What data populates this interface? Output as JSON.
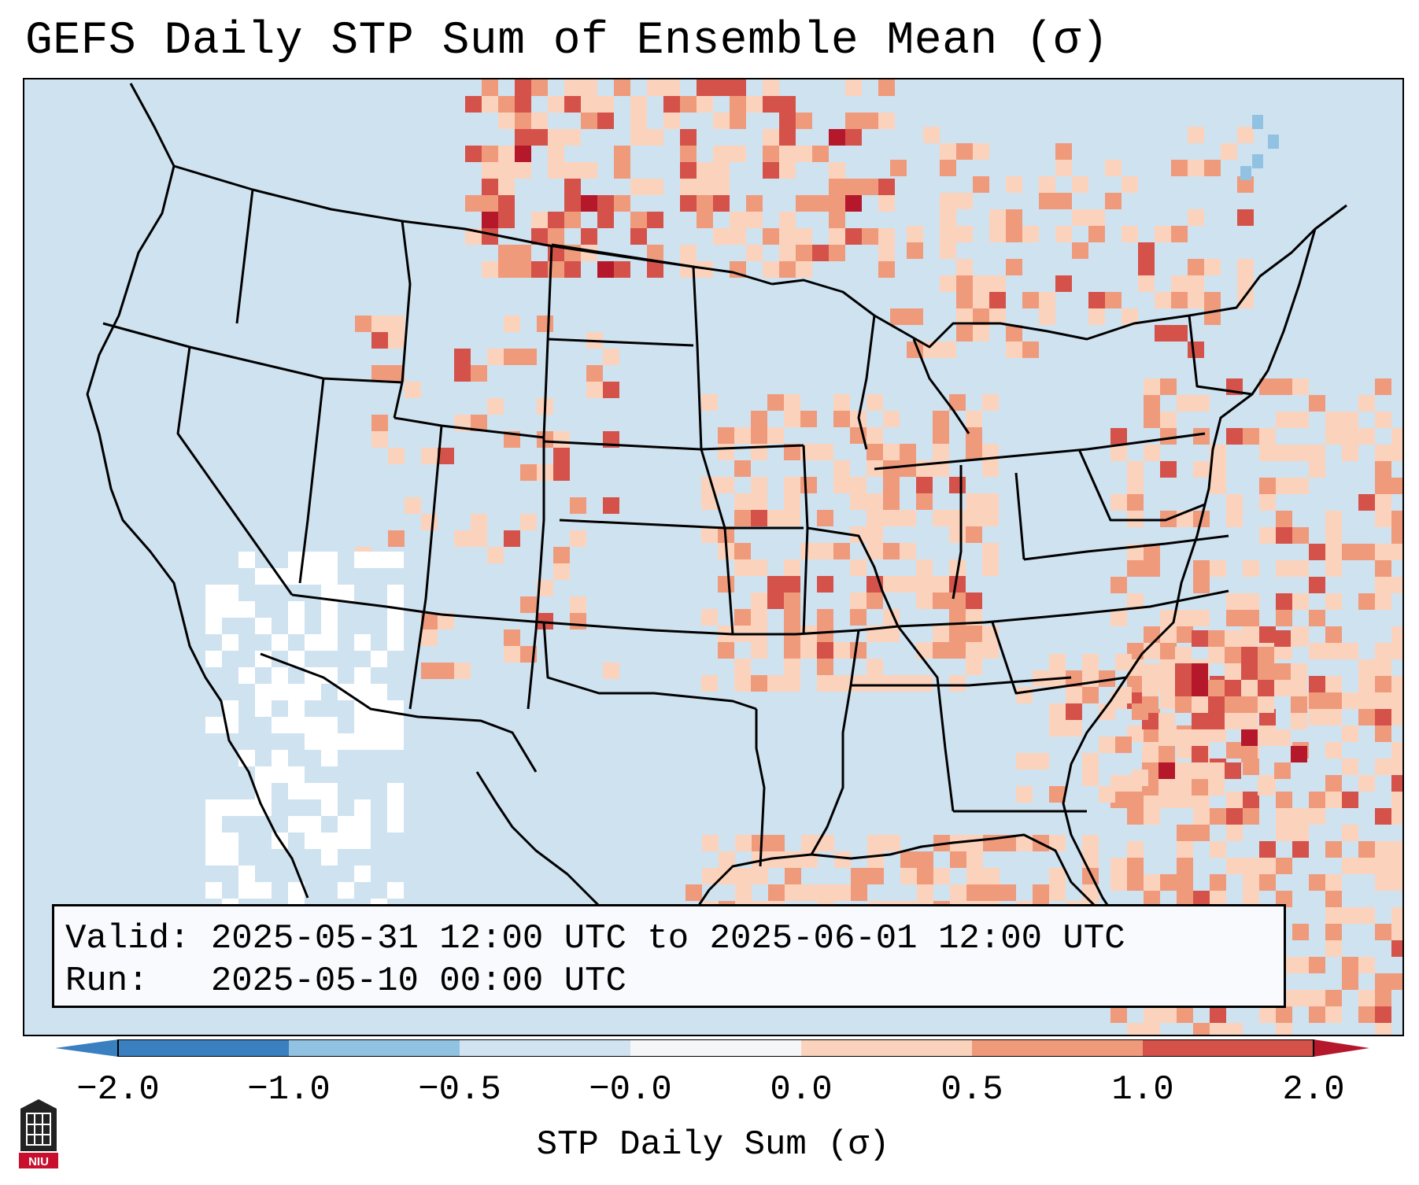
{
  "title": "GEFS Daily STP Sum of Ensemble Mean (σ)",
  "info": {
    "valid": "Valid: 2025-05-31 12:00 UTC to 2025-06-01 12:00 UTC",
    "run": "Run:   2025-05-10 00:00 UTC"
  },
  "colorbar": {
    "label": "STP Daily Sum (σ)",
    "ticks": [
      "−2.0",
      "−1.0",
      "−0.5",
      "−0.0",
      "0.0",
      "0.5",
      "1.0",
      "2.0"
    ],
    "colors": [
      "#3a7fbf",
      "#92c2e1",
      "#d1e3f1",
      "#f4f6f8",
      "#fbd3bd",
      "#f09a7c",
      "#d4524a",
      "#b5172b"
    ]
  },
  "map": {
    "background_color": "#cfe2f0",
    "positive_colors": [
      "#fbd3bd",
      "#f09a7c",
      "#d4524a",
      "#b5172b"
    ],
    "negative_color": "#92c2e1",
    "missing_color": "#ffffff"
  },
  "logo_text": "NIU"
}
